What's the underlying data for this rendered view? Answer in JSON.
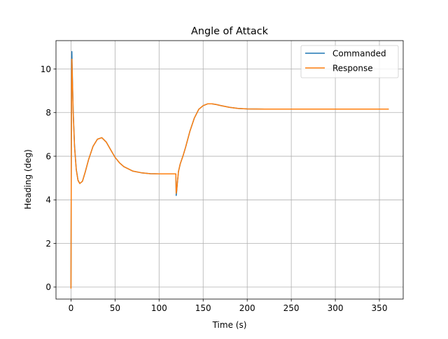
{
  "chart_data": {
    "type": "line",
    "title": "Angle of Attack",
    "xlabel": "Time (s)",
    "ylabel": "Heading (deg)",
    "xlim": [
      -17,
      377
    ],
    "ylim": [
      -0.55,
      11.3
    ],
    "xticks": [
      0,
      50,
      100,
      150,
      200,
      250,
      300,
      350
    ],
    "yticks": [
      0,
      2,
      4,
      6,
      8,
      10
    ],
    "grid": true,
    "legend_position": "upper right",
    "series": [
      {
        "name": "Commanded",
        "color": "#1f77b4",
        "points": [
          [
            0,
            0
          ],
          [
            0.3,
            5.0
          ],
          [
            0.6,
            9.5
          ],
          [
            1,
            10.8
          ],
          [
            1.6,
            9.6
          ],
          [
            2.5,
            8.1
          ],
          [
            4,
            6.5
          ],
          [
            6,
            5.4
          ],
          [
            8,
            4.9
          ],
          [
            10,
            4.75
          ],
          [
            13,
            4.85
          ],
          [
            16,
            5.25
          ],
          [
            20,
            5.85
          ],
          [
            25,
            6.45
          ],
          [
            30,
            6.78
          ],
          [
            35,
            6.85
          ],
          [
            40,
            6.65
          ],
          [
            45,
            6.3
          ],
          [
            50,
            5.95
          ],
          [
            55,
            5.7
          ],
          [
            60,
            5.52
          ],
          [
            70,
            5.32
          ],
          [
            80,
            5.24
          ],
          [
            90,
            5.2
          ],
          [
            100,
            5.19
          ],
          [
            110,
            5.19
          ],
          [
            119,
            5.19
          ],
          [
            119.4,
            4.2
          ],
          [
            120,
            4.4
          ],
          [
            121,
            4.9
          ],
          [
            122,
            5.3
          ],
          [
            124,
            5.65
          ],
          [
            127,
            6.0
          ],
          [
            130,
            6.4
          ],
          [
            135,
            7.15
          ],
          [
            140,
            7.75
          ],
          [
            145,
            8.15
          ],
          [
            150,
            8.32
          ],
          [
            155,
            8.4
          ],
          [
            160,
            8.4
          ],
          [
            165,
            8.37
          ],
          [
            170,
            8.32
          ],
          [
            180,
            8.24
          ],
          [
            190,
            8.19
          ],
          [
            200,
            8.17
          ],
          [
            220,
            8.16
          ],
          [
            250,
            8.16
          ],
          [
            300,
            8.16
          ],
          [
            360,
            8.16
          ]
        ]
      },
      {
        "name": "Response",
        "color": "#ff7f0e",
        "points": [
          [
            0,
            -0.05
          ],
          [
            0.3,
            4.5
          ],
          [
            0.6,
            9.0
          ],
          [
            1,
            10.45
          ],
          [
            1.6,
            9.5
          ],
          [
            2.5,
            8.0
          ],
          [
            4,
            6.45
          ],
          [
            6,
            5.38
          ],
          [
            8,
            4.88
          ],
          [
            10,
            4.75
          ],
          [
            13,
            4.85
          ],
          [
            16,
            5.25
          ],
          [
            20,
            5.85
          ],
          [
            25,
            6.45
          ],
          [
            30,
            6.78
          ],
          [
            35,
            6.85
          ],
          [
            40,
            6.65
          ],
          [
            45,
            6.3
          ],
          [
            50,
            5.95
          ],
          [
            55,
            5.7
          ],
          [
            60,
            5.52
          ],
          [
            70,
            5.32
          ],
          [
            80,
            5.24
          ],
          [
            90,
            5.2
          ],
          [
            100,
            5.19
          ],
          [
            110,
            5.19
          ],
          [
            119,
            5.19
          ],
          [
            119.4,
            4.3
          ],
          [
            120,
            4.45
          ],
          [
            121,
            4.9
          ],
          [
            122,
            5.3
          ],
          [
            124,
            5.65
          ],
          [
            127,
            6.0
          ],
          [
            130,
            6.4
          ],
          [
            135,
            7.15
          ],
          [
            140,
            7.75
          ],
          [
            145,
            8.15
          ],
          [
            150,
            8.32
          ],
          [
            155,
            8.4
          ],
          [
            160,
            8.4
          ],
          [
            165,
            8.37
          ],
          [
            170,
            8.32
          ],
          [
            180,
            8.24
          ],
          [
            190,
            8.19
          ],
          [
            200,
            8.17
          ],
          [
            220,
            8.16
          ],
          [
            250,
            8.16
          ],
          [
            300,
            8.16
          ],
          [
            360,
            8.16
          ]
        ]
      }
    ]
  }
}
